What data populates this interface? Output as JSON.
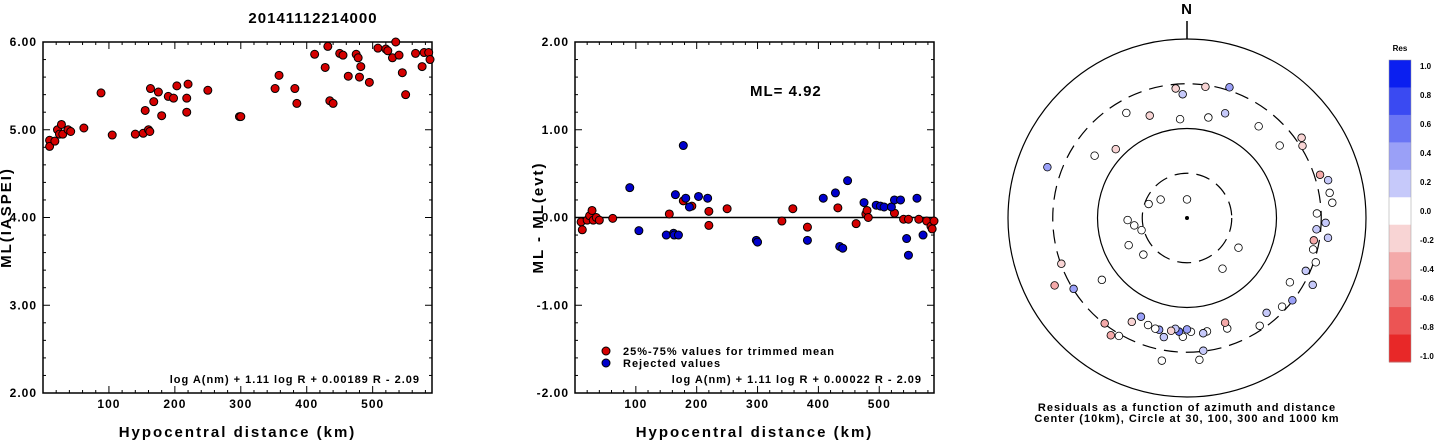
{
  "title": "20141112214000",
  "chart_data": [
    {
      "type": "scatter",
      "xlabel": "Hypocentral distance (km)",
      "ylabel": "ML(IASPEI)",
      "xlim": [
        0,
        590
      ],
      "ylim": [
        2.0,
        6.0
      ],
      "xticks": [
        "100",
        "200",
        "300",
        "400",
        "500"
      ],
      "yticks": [
        "2.00",
        "3.00",
        "4.00",
        "5.00",
        "6.00"
      ],
      "annotation": "log A(nm) + 1.11 log R + 0.00189 R - 2.09",
      "series": [
        {
          "color": "#d40000",
          "points": [
            [
              10,
              4.88
            ],
            [
              10,
              4.81
            ],
            [
              18,
              4.87
            ],
            [
              22,
              5.0
            ],
            [
              25,
              4.95
            ],
            [
              28,
              5.06
            ],
            [
              30,
              4.95
            ],
            [
              38,
              5.0
            ],
            [
              42,
              4.98
            ],
            [
              62,
              5.02
            ],
            [
              88,
              5.42
            ],
            [
              105,
              4.94
            ],
            [
              140,
              4.95
            ],
            [
              152,
              4.96
            ],
            [
              155,
              5.22
            ],
            [
              160,
              5.0
            ],
            [
              163,
              5.47
            ],
            [
              162,
              4.98
            ],
            [
              168,
              5.32
            ],
            [
              175,
              5.43
            ],
            [
              180,
              5.16
            ],
            [
              190,
              5.38
            ],
            [
              198,
              5.36
            ],
            [
              203,
              5.5
            ],
            [
              218,
              5.36
            ],
            [
              220,
              5.52
            ],
            [
              218,
              5.2
            ],
            [
              250,
              5.45
            ],
            [
              298,
              5.15
            ],
            [
              300,
              5.15
            ],
            [
              352,
              5.47
            ],
            [
              358,
              5.62
            ],
            [
              382,
              5.47
            ],
            [
              385,
              5.3
            ],
            [
              412,
              5.86
            ],
            [
              428,
              5.71
            ],
            [
              432,
              5.95
            ],
            [
              435,
              5.33
            ],
            [
              440,
              5.3
            ],
            [
              450,
              5.87
            ],
            [
              455,
              5.85
            ],
            [
              463,
              5.61
            ],
            [
              475,
              5.86
            ],
            [
              478,
              5.82
            ],
            [
              482,
              5.72
            ],
            [
              480,
              5.6
            ],
            [
              495,
              5.54
            ],
            [
              508,
              5.93
            ],
            [
              520,
              5.92
            ],
            [
              523,
              5.9
            ],
            [
              530,
              5.82
            ],
            [
              535,
              6.0
            ],
            [
              540,
              5.85
            ],
            [
              545,
              5.65
            ],
            [
              550,
              5.4
            ],
            [
              565,
              5.87
            ],
            [
              575,
              5.72
            ],
            [
              578,
              5.88
            ],
            [
              585,
              5.88
            ],
            [
              587,
              5.8
            ]
          ]
        }
      ]
    },
    {
      "type": "scatter",
      "xlabel": "Hypocentral distance (km)",
      "ylabel": "ML - ML(evt)",
      "xlim": [
        0,
        590
      ],
      "ylim": [
        -2.0,
        2.0
      ],
      "xticks": [
        "100",
        "200",
        "300",
        "400",
        "500"
      ],
      "yticks": [
        "-2.00",
        "-1.00",
        "0.00",
        "1.00",
        "2.00"
      ],
      "reference_line": 0.0,
      "ml_label": "ML= 4.92",
      "annotation": "log A(nm) + 1.11 log R + 0.00022 R - 2.09",
      "legend": "bottom-left",
      "series": [
        {
          "name": "25%-75% values for trimmed mean",
          "color": "#d40000",
          "points": [
            [
              10,
              -0.05
            ],
            [
              12,
              -0.14
            ],
            [
              20,
              -0.03
            ],
            [
              24,
              0.02
            ],
            [
              28,
              0.08
            ],
            [
              30,
              -0.03
            ],
            [
              35,
              0.0
            ],
            [
              40,
              -0.03
            ],
            [
              62,
              -0.01
            ],
            [
              155,
              0.04
            ],
            [
              178,
              0.19
            ],
            [
              192,
              0.13
            ],
            [
              220,
              -0.09
            ],
            [
              220,
              0.07
            ],
            [
              250,
              0.1
            ],
            [
              340,
              -0.04
            ],
            [
              358,
              0.1
            ],
            [
              382,
              -0.11
            ],
            [
              432,
              0.11
            ],
            [
              462,
              -0.07
            ],
            [
              478,
              0.04
            ],
            [
              480,
              0.08
            ],
            [
              482,
              0.0
            ],
            [
              525,
              0.05
            ],
            [
              540,
              -0.02
            ],
            [
              548,
              -0.02
            ],
            [
              565,
              -0.02
            ],
            [
              578,
              -0.04
            ],
            [
              585,
              -0.1
            ],
            [
              587,
              -0.13
            ],
            [
              590,
              -0.04
            ]
          ]
        },
        {
          "name": "Rejected values",
          "color": "#0000cc",
          "points": [
            [
              90,
              0.34
            ],
            [
              105,
              -0.15
            ],
            [
              150,
              -0.2
            ],
            [
              162,
              -0.18
            ],
            [
              163,
              -0.2
            ],
            [
              165,
              0.26
            ],
            [
              170,
              -0.2
            ],
            [
              178,
              0.82
            ],
            [
              182,
              0.22
            ],
            [
              188,
              0.12
            ],
            [
              203,
              0.24
            ],
            [
              218,
              0.22
            ],
            [
              298,
              -0.26
            ],
            [
              300,
              -0.28
            ],
            [
              382,
              -0.26
            ],
            [
              408,
              0.22
            ],
            [
              428,
              0.28
            ],
            [
              435,
              -0.33
            ],
            [
              440,
              -0.35
            ],
            [
              448,
              0.42
            ],
            [
              475,
              0.17
            ],
            [
              495,
              0.14
            ],
            [
              502,
              0.13
            ],
            [
              508,
              0.12
            ],
            [
              520,
              0.12
            ],
            [
              525,
              0.2
            ],
            [
              535,
              0.2
            ],
            [
              545,
              -0.24
            ],
            [
              548,
              -0.43
            ],
            [
              562,
              0.22
            ],
            [
              572,
              -0.2
            ]
          ]
        }
      ]
    },
    {
      "type": "scatter",
      "subtype": "polar residual plot",
      "north_label": "N",
      "caption": [
        "Residuals as a function of azimuth and distance",
        "Center (10km), Circle at 30, 100, 300 and 1000 km"
      ],
      "rings": [
        30,
        100,
        300,
        1000
      ],
      "colorbar": {
        "title": "Res",
        "labels": [
          "1.0",
          "0.8",
          "0.6",
          "0.4",
          "0.2",
          "0.0",
          "-0.2",
          "-0.4",
          "-0.6",
          "-0.8",
          "-1.0"
        ],
        "colors": [
          "#0b1ff0",
          "#3a4af2",
          "#6a75f4",
          "#9aa0f7",
          "#c6c9fa",
          "#ffffff",
          "#f8d4d4",
          "#f4a9a9",
          "#f07f7f",
          "#ec5454",
          "#e82828"
        ]
      },
      "points": [
        {
          "az": 0,
          "r": 0.15,
          "res": -0.03
        },
        {
          "az": 290,
          "r": 0.33,
          "res": 0.0
        },
        {
          "az": 305,
          "r": 0.26,
          "res": -0.03
        },
        {
          "az": 268,
          "r": 0.48,
          "res": 0.02
        },
        {
          "az": 262,
          "r": 0.43,
          "res": 0.0
        },
        {
          "az": 255,
          "r": 0.38,
          "res": 0.0
        },
        {
          "az": 245,
          "r": 0.52,
          "res": 0.0
        },
        {
          "az": 230,
          "r": 0.46,
          "res": 0.03
        },
        {
          "az": 234,
          "r": 0.85,
          "res": 0.0
        },
        {
          "az": 205,
          "r": 0.88,
          "res": 0.32
        },
        {
          "az": 145,
          "r": 0.5,
          "res": 0.0
        },
        {
          "az": 120,
          "r": 0.48,
          "res": 0.02
        },
        {
          "az": 122,
          "r": 0.98,
          "res": 0.03
        },
        {
          "az": 356,
          "r": 0.8,
          "res": -0.08
        },
        {
          "az": 12,
          "r": 0.83,
          "res": 0.0
        },
        {
          "az": 340,
          "r": 0.88,
          "res": -0.18
        },
        {
          "az": 330,
          "r": 0.98,
          "res": 0.05
        },
        {
          "az": 52,
          "r": 0.95,
          "res": 0.02
        },
        {
          "az": 38,
          "r": 0.94,
          "res": -0.06
        },
        {
          "az": 20,
          "r": 0.9,
          "res": 0.22
        },
        {
          "az": 8,
          "r": 1.07,
          "res": -0.12
        },
        {
          "az": 358,
          "r": 1.0,
          "res": 0.15
        },
        {
          "az": 355,
          "r": 1.05,
          "res": -0.1
        },
        {
          "az": 18,
          "r": 1.11,
          "res": 0.43
        },
        {
          "az": 55,
          "r": 1.13,
          "res": -0.2
        },
        {
          "az": 58,
          "r": 1.1,
          "res": -0.2
        },
        {
          "az": 72,
          "r": 1.13,
          "res": -0.4
        },
        {
          "az": 75,
          "r": 1.18,
          "res": 0.12
        },
        {
          "az": 80,
          "r": 1.17,
          "res": 0.05
        },
        {
          "az": 84,
          "r": 1.18,
          "res": 0.02
        },
        {
          "az": 88,
          "r": 1.05,
          "res": 0.1
        },
        {
          "az": 92,
          "r": 1.12,
          "res": 0.2
        },
        {
          "az": 95,
          "r": 1.05,
          "res": 0.15
        },
        {
          "az": 98,
          "r": 1.15,
          "res": 0.25
        },
        {
          "az": 100,
          "r": 1.04,
          "res": -0.45
        },
        {
          "az": 104,
          "r": 1.05,
          "res": 0.0
        },
        {
          "az": 109,
          "r": 1.1,
          "res": 0.05
        },
        {
          "az": 114,
          "r": 1.05,
          "res": 0.2
        },
        {
          "az": 118,
          "r": 1.15,
          "res": 0.3
        },
        {
          "az": 128,
          "r": 1.08,
          "res": 0.35
        },
        {
          "az": 133,
          "r": 1.05,
          "res": 0.1
        },
        {
          "az": 140,
          "r": 1.0,
          "res": 0.18
        },
        {
          "az": 146,
          "r": 1.05,
          "res": 0.0
        },
        {
          "az": 160,
          "r": 0.95,
          "res": 0.0
        },
        {
          "az": 160,
          "r": 0.9,
          "res": -0.3
        },
        {
          "az": 170,
          "r": 0.93,
          "res": 0.0
        },
        {
          "az": 172,
          "r": 0.94,
          "res": 0.15
        },
        {
          "az": 173,
          "r": 1.08,
          "res": 0.2
        },
        {
          "az": 175,
          "r": 1.15,
          "res": 0.1
        },
        {
          "az": 178,
          "r": 0.92,
          "res": 0.0
        },
        {
          "az": 180,
          "r": 0.9,
          "res": 0.35
        },
        {
          "az": 182,
          "r": 0.96,
          "res": 0.1
        },
        {
          "az": 184,
          "r": 0.92,
          "res": 0.6
        },
        {
          "az": 186,
          "r": 0.9,
          "res": 0.25
        },
        {
          "az": 188,
          "r": 0.92,
          "res": -0.2
        },
        {
          "az": 190,
          "r": 1.17,
          "res": 0.0
        },
        {
          "az": 191,
          "r": 0.98,
          "res": 0.3
        },
        {
          "az": 194,
          "r": 0.93,
          "res": 0.35
        },
        {
          "az": 196,
          "r": 0.93,
          "res": 0.1
        },
        {
          "az": 200,
          "r": 0.92,
          "res": 0.05
        },
        {
          "az": 208,
          "r": 0.95,
          "res": -0.2
        },
        {
          "az": 210,
          "r": 1.1,
          "res": 0.0
        },
        {
          "az": 213,
          "r": 1.13,
          "res": -0.35
        },
        {
          "az": 218,
          "r": 1.08,
          "res": -0.3
        },
        {
          "az": 238,
          "r": 1.08,
          "res": 0.45
        },
        {
          "az": 243,
          "r": 1.2,
          "res": -0.3
        },
        {
          "az": 250,
          "r": 1.08,
          "res": -0.2
        },
        {
          "az": 290,
          "r": 1.2,
          "res": 0.4
        },
        {
          "az": 304,
          "r": 0.9,
          "res": 0.02
        },
        {
          "az": 314,
          "r": 0.8,
          "res": -0.15
        }
      ]
    }
  ]
}
